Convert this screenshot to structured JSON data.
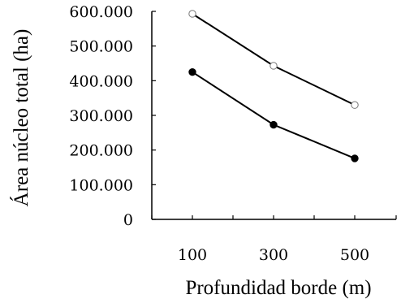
{
  "chart_data": {
    "type": "line",
    "xlabel": "Profundidad borde (m)",
    "ylabel": "Área núcleo total (ha)",
    "categories": [
      "100",
      "300",
      "500"
    ],
    "y_ticks": [
      "0",
      "100.000",
      "200.000",
      "300.000",
      "400.000",
      "500.000",
      "600.000"
    ],
    "ylim": [
      0,
      600000
    ],
    "grid": false,
    "legend": "none",
    "series": [
      {
        "marker": "open-circle",
        "values": [
          593000,
          443000,
          330000
        ]
      },
      {
        "marker": "filled-circle",
        "values": [
          425000,
          273000,
          176000
        ]
      }
    ],
    "colors": {
      "line": "#000000",
      "background": "#ffffff"
    }
  }
}
